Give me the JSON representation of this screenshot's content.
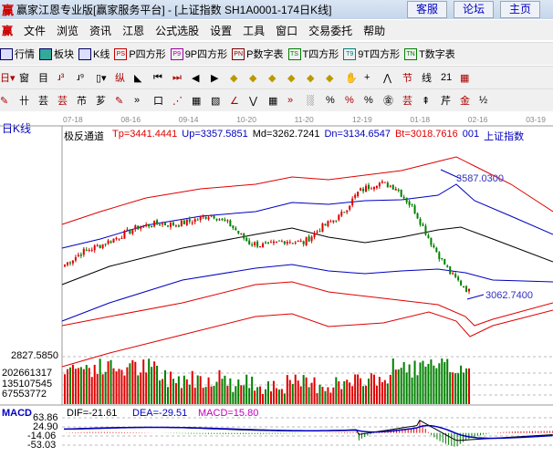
{
  "window": {
    "title": "赢家江恩专业版[赢家服务平台] - [上证指数  SH1A0001-174日K线]",
    "buttons": [
      "客服",
      "论坛",
      "主页"
    ]
  },
  "menu": [
    "文件",
    "浏览",
    "资讯",
    "江恩",
    "公式选股",
    "设置",
    "工具",
    "窗口",
    "交易委托",
    "帮助"
  ],
  "toolbar1": [
    {
      "icon": "table-icon",
      "label": "行情"
    },
    {
      "icon": "blocks-icon",
      "label": "板块"
    },
    {
      "icon": "kline-icon",
      "label": "K线"
    },
    {
      "icon": "PS",
      "label": "P四方形",
      "color": "#c00000"
    },
    {
      "icon": "P9",
      "label": "9P四方形",
      "color": "#a000a0"
    },
    {
      "icon": "PN",
      "label": "P数字表",
      "color": "#800000"
    },
    {
      "icon": "TS",
      "label": "T四方形",
      "color": "#008000"
    },
    {
      "icon": "T9",
      "label": "9T四方形",
      "color": "#008080"
    },
    {
      "icon": "TN",
      "label": "T数字表",
      "color": "#008000"
    }
  ],
  "toolbar2": [
    "日▾",
    "窗",
    "目",
    "ɹ³",
    "ɹ⁹",
    "▯▾",
    "纵",
    "◣",
    "⏮",
    "⏭",
    "◀",
    "▶",
    "◆",
    "◆",
    "◆",
    "◆",
    "◆",
    "◆",
    "✋",
    "+",
    "⋀",
    "节",
    "线",
    "21",
    "▦"
  ],
  "toolbar3": [
    "✎",
    "卄",
    "芸",
    "芸",
    "芇",
    "芗",
    "✎",
    "»",
    "口",
    "⋰",
    "▦",
    "▧",
    "∠",
    "⋁",
    "▦",
    "»",
    "░",
    "%",
    "%",
    "%",
    "㊎",
    "芸",
    "⇞",
    "芹",
    "金",
    "½"
  ],
  "chart": {
    "period_label": "日K线",
    "dates": [
      "07-18",
      "08-16",
      "09-14",
      "10-20",
      "11-20",
      "12-19",
      "01-18",
      "02-16",
      "03-19"
    ],
    "indicator": "极反通道",
    "values": [
      {
        "t": "Tp=3441.4441",
        "c": "#e00000"
      },
      {
        "t": "Up=3357.5851",
        "c": "#0000c0"
      },
      {
        "t": "Md=3262.7241",
        "c": "#000000"
      },
      {
        "t": "Dn=3134.6547",
        "c": "#0000c0"
      },
      {
        "t": "Bt=3018.7616",
        "c": "#e00000"
      },
      {
        "t": "001",
        "c": "#0000c0"
      },
      {
        "t": "上证指数",
        "c": "#0000c0"
      }
    ],
    "high_label": "3587.0300",
    "low_label": "3062.7400",
    "price_axis_label": "2827.5850",
    "price_keypoints": [
      3202,
      3260,
      3290,
      3330,
      3370,
      3386,
      3380,
      3400,
      3427,
      3380,
      3300,
      3285,
      3310,
      3300,
      3370,
      3420,
      3530,
      3570,
      3550,
      3450,
      3290,
      3160,
      3080
    ],
    "volume_labels": [
      "202661317",
      "135107545",
      "67553772"
    ],
    "macd": {
      "title": "MACD",
      "dif": "DIF=-21.61",
      "dea": "DEA=-29.51",
      "macd": "MACD=15.80",
      "labels": [
        "63.86",
        "24.90",
        "-14.06",
        "-53.03"
      ]
    }
  },
  "colors": {
    "up": "#e00000",
    "down": "#008000",
    "band": "#0000c0",
    "mid": "#000000",
    "outer": "#e00000"
  }
}
